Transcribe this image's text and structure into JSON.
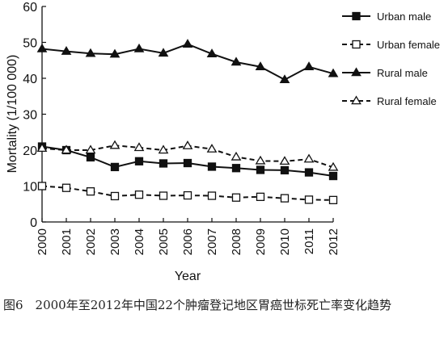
{
  "chart_data": {
    "type": "line",
    "x": [
      "2000",
      "2001",
      "2002",
      "2003",
      "2004",
      "2005",
      "2006",
      "2007",
      "2008",
      "2009",
      "2010",
      "2011",
      "2012"
    ],
    "xlabel": "Year",
    "ylabel": "Mortality (1/100 000)",
    "ylim": [
      0,
      60
    ],
    "yticks": [
      0,
      10,
      20,
      30,
      40,
      50,
      60
    ],
    "grid": false,
    "legend_position": "top-right",
    "series": [
      {
        "name": "Urban male",
        "line": "solid",
        "marker": "square-filled",
        "values": [
          21.0,
          20.0,
          18.0,
          15.3,
          16.9,
          16.3,
          16.4,
          15.4,
          15.0,
          14.5,
          14.4,
          13.8,
          12.8
        ]
      },
      {
        "name": "Urban female",
        "line": "dashed",
        "marker": "square-open",
        "values": [
          10.0,
          9.5,
          8.5,
          7.2,
          7.6,
          7.3,
          7.4,
          7.3,
          6.8,
          7.0,
          6.6,
          6.2,
          6.1
        ]
      },
      {
        "name": "Rural male",
        "line": "solid",
        "marker": "triangle-filled",
        "values": [
          48.2,
          47.5,
          46.9,
          46.7,
          48.2,
          47.0,
          49.5,
          46.8,
          44.5,
          43.2,
          39.6,
          43.2,
          41.3
        ]
      },
      {
        "name": "Rural female",
        "line": "dashed",
        "marker": "triangle-open",
        "values": [
          20.5,
          20.0,
          20.0,
          21.3,
          20.7,
          20.0,
          21.2,
          20.3,
          18.1,
          17.0,
          16.9,
          17.5,
          15.2
        ]
      }
    ]
  },
  "caption": "图6　2000年至2012年中国22个肿瘤登记地区胃癌世标死亡率变化趋势"
}
